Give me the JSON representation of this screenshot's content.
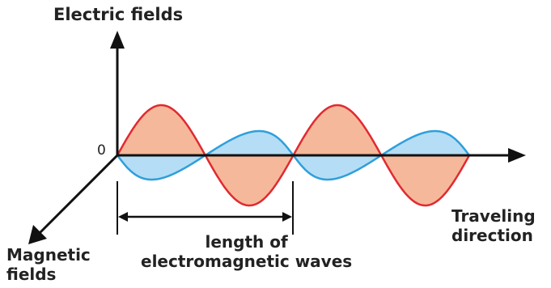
{
  "labels": {
    "electric_fields": "Electric fields",
    "origin": "0",
    "traveling_direction": [
      "Traveling",
      "direction"
    ],
    "magnetic_fields": [
      "Magnetic",
      "fields"
    ],
    "wavelength": [
      "length of",
      "electromagnetic waves"
    ]
  },
  "colors": {
    "electric_wave_stroke": "#e02a30",
    "electric_wave_fill": "#f6b89a",
    "magnetic_wave_stroke": "#2e9fdc",
    "magnetic_wave_fill": "#b5ddf5",
    "axis": "#111111"
  }
}
